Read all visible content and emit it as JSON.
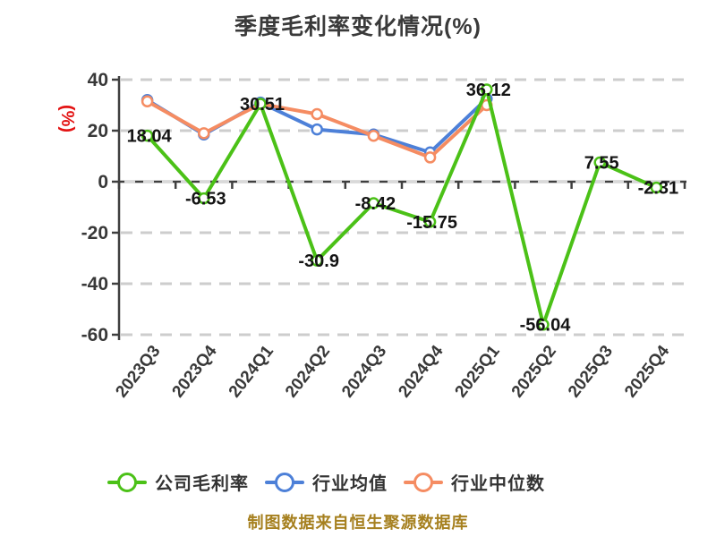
{
  "title": "季度毛利率变化情况(%)",
  "footer": "制图数据来自恒生聚源数据库",
  "colors": {
    "background": "#ffffff",
    "title_text": "#3a3a3a",
    "axis_line": "#3f3f3f",
    "grid_line": "#cdcdcd",
    "zero_line_dash": "#d9d9d9",
    "tick_text": "#383838",
    "value_label_text": "#141414",
    "y_axis_unit_text": "#e31212",
    "footer_text": "#a6801f",
    "legend_text": "#333333"
  },
  "chart_data": {
    "type": "line",
    "title": "季度毛利率变化情况(%)",
    "ylabel": "(%)",
    "xlabel": "",
    "categories": [
      "2023Q3",
      "2023Q4",
      "2024Q1",
      "2024Q2",
      "2024Q3",
      "2024Q4",
      "2025Q1",
      "2025Q2",
      "2025Q3",
      "2025Q4"
    ],
    "yticks": [
      40,
      20,
      0,
      -20,
      -40,
      -60
    ],
    "ylim": [
      -66,
      44
    ],
    "grid": "horizontal-dashed",
    "legend_position": "bottom",
    "series": [
      {
        "name": "公司毛利率",
        "color": "#4bc117",
        "values": [
          18.04,
          -6.53,
          30.51,
          -30.9,
          -8.42,
          -15.75,
          36.12,
          -56.04,
          7.55,
          -2.31
        ],
        "point_labels": [
          "18.04",
          "-6.53",
          "30.51",
          "-30.9",
          "-8.42",
          "-15.75",
          "36.12",
          "-56.04",
          "7.55",
          "-2.31"
        ]
      },
      {
        "name": "行业均值",
        "color": "#4d80d8",
        "values": [
          32,
          18.5,
          31,
          20.5,
          18.5,
          11.5,
          32.5,
          null,
          null,
          null
        ]
      },
      {
        "name": "行业中位数",
        "color": "#f58c62",
        "values": [
          31.5,
          19,
          30.5,
          26.5,
          18,
          9.5,
          30,
          null,
          null,
          null
        ]
      }
    ]
  }
}
